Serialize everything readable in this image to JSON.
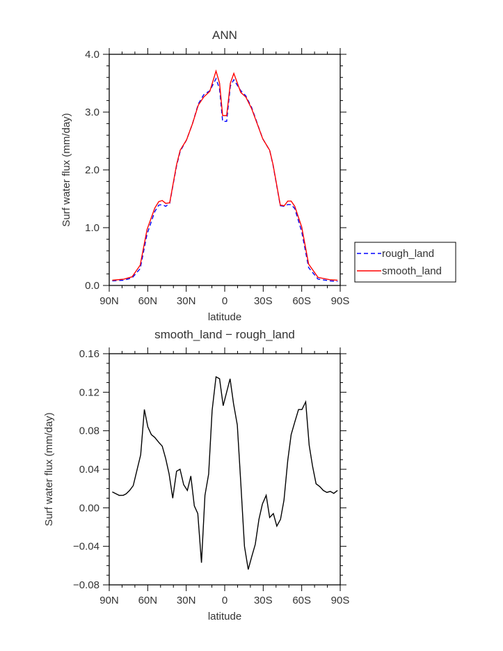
{
  "chart_data": [
    {
      "type": "line",
      "title": "ANN",
      "xlabel": "latitude",
      "ylabel": "Surf water flux (mm/day)",
      "xlim": [
        90,
        -90
      ],
      "ylim": [
        0,
        4.0
      ],
      "xticks": [
        90,
        60,
        30,
        0,
        -30,
        -60,
        -90
      ],
      "xtick_labels": [
        "90N",
        "60N",
        "30N",
        "0",
        "30S",
        "60S",
        "90S"
      ],
      "yticks": [
        0,
        1,
        2,
        3,
        4
      ],
      "ytick_labels": [
        "0.0",
        "1.0",
        "2.0",
        "3.0",
        "4.0"
      ],
      "legend_position": "right",
      "x": [
        87.6,
        78.6,
        72.2,
        65.9,
        60.5,
        54.5,
        51.4,
        48.7,
        46,
        42.9,
        37.5,
        34.7,
        29.7,
        25.1,
        20.6,
        16.4,
        11.6,
        6.8,
        4.0,
        1.6,
        -1.5,
        -4.4,
        -7.1,
        -12.5,
        -16.5,
        -21,
        -29.6,
        -35,
        -37.7,
        -43.3,
        -46.4,
        -49.1,
        -51.8,
        -54.6,
        -60,
        -65.4,
        -72.7,
        -81.7,
        -87.9
      ],
      "series": [
        {
          "name": "rough_land",
          "color": "#0000ff",
          "dash": true,
          "values": [
            0.08,
            0.09,
            0.13,
            0.29,
            0.89,
            1.28,
            1.39,
            1.4,
            1.37,
            1.42,
            2.07,
            2.32,
            2.52,
            2.8,
            3.14,
            3.3,
            3.37,
            3.58,
            3.4,
            2.84,
            2.84,
            3.45,
            3.56,
            3.37,
            3.28,
            3.08,
            2.54,
            2.34,
            2.08,
            1.38,
            1.37,
            1.4,
            1.4,
            1.33,
            0.93,
            0.31,
            0.11,
            0.08,
            0.07
          ]
        },
        {
          "name": "smooth_land",
          "color": "#ff0000",
          "dash": false,
          "values": [
            0.09,
            0.11,
            0.15,
            0.35,
            0.97,
            1.34,
            1.45,
            1.47,
            1.42,
            1.43,
            2.09,
            2.34,
            2.52,
            2.8,
            3.12,
            3.26,
            3.36,
            3.71,
            3.5,
            2.94,
            2.94,
            3.5,
            3.67,
            3.34,
            3.26,
            3.06,
            2.54,
            2.34,
            2.09,
            1.39,
            1.38,
            1.46,
            1.46,
            1.37,
            1.01,
            0.37,
            0.14,
            0.1,
            0.09
          ]
        }
      ]
    },
    {
      "type": "line",
      "title": "smooth_land − rough_land",
      "xlabel": "latitude",
      "ylabel": "Surf water flux (mm/day)",
      "xlim": [
        90,
        -90
      ],
      "ylim": [
        -0.08,
        0.16
      ],
      "xticks": [
        90,
        60,
        30,
        0,
        -30,
        -60,
        -90
      ],
      "xtick_labels": [
        "90N",
        "60N",
        "30N",
        "0",
        "30S",
        "60S",
        "90S"
      ],
      "yticks": [
        -0.08,
        -0.04,
        0,
        0.04,
        0.08,
        0.12,
        0.16
      ],
      "ytick_labels": [
        "−0.08",
        "−0.04",
        "0.00",
        "0.04",
        "0.08",
        "0.12",
        "0.16"
      ],
      "x": [
        87.6,
        82.2,
        79.1,
        76.8,
        74.1,
        71.3,
        68.6,
        65.5,
        62.6,
        59.9,
        57.2,
        54.5,
        51.4,
        48.7,
        46,
        43.3,
        40.5,
        37.5,
        34.8,
        32,
        29.1,
        26.4,
        23.7,
        21,
        18.1,
        15.4,
        12.5,
        9.8,
        6.8,
        4.0,
        1.2,
        -4.2,
        -6.9,
        -9.8,
        -12.5,
        -15.4,
        -18.3,
        -21,
        -23.8,
        -26.7,
        -29.4,
        -32.3,
        -35,
        -37.9,
        -40.6,
        -43.5,
        -46.2,
        -49.1,
        -51.8,
        -54.6,
        -57.5,
        -60.2,
        -63.1,
        -65.8,
        -68.5,
        -71.2,
        -74.1,
        -76.8,
        -79.6,
        -82.3,
        -85,
        -87.9
      ],
      "series": [
        {
          "name": "smooth_land - rough_land",
          "color": "#000000",
          "dash": false,
          "values": [
            0.0165,
            0.0129,
            0.013,
            0.0145,
            0.018,
            0.023,
            0.038,
            0.055,
            0.102,
            0.084,
            0.076,
            0.073,
            0.068,
            0.064,
            0.051,
            0.035,
            0.01,
            0.038,
            0.04,
            0.024,
            0.018,
            0.033,
            0.002,
            -0.006,
            -0.057,
            0.013,
            0.035,
            0.101,
            0.136,
            0.134,
            0.106,
            0.134,
            0.108,
            0.086,
            0.026,
            -0.04,
            -0.064,
            -0.051,
            -0.038,
            -0.012,
            0.004,
            0.013,
            -0.01,
            -0.006,
            -0.019,
            -0.012,
            0.008,
            0.049,
            0.076,
            0.089,
            0.102,
            0.102,
            0.11,
            0.065,
            0.043,
            0.025,
            0.022,
            0.018,
            0.016,
            0.017,
            0.015,
            0.018
          ]
        }
      ]
    }
  ]
}
